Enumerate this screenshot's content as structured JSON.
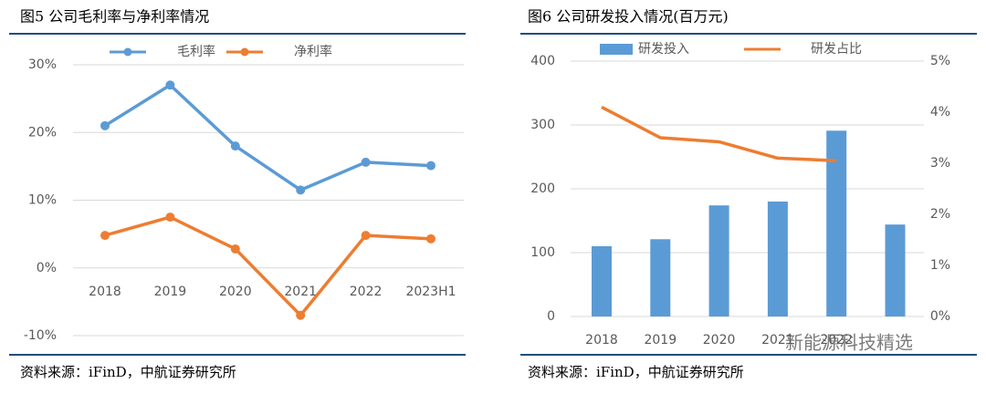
{
  "chart_data": [
    {
      "type": "line",
      "title": "图5 公司毛利率与净利率情况",
      "source": "资料来源：iFinD，中航证券研究所",
      "categories": [
        "2018",
        "2019",
        "2020",
        "2021",
        "2022",
        "2023H1"
      ],
      "series": [
        {
          "name": "毛利率",
          "color": "#5b9bd5",
          "values": [
            21,
            27,
            18,
            11.5,
            15.6,
            15.1
          ]
        },
        {
          "name": "净利率",
          "color": "#ed7d31",
          "values": [
            4.8,
            7.5,
            2.8,
            -7,
            4.8,
            4.3
          ]
        }
      ],
      "markers": true,
      "ylim": [
        -10,
        30
      ],
      "yticks": [
        {
          "value": -10,
          "label": "-10%"
        },
        {
          "value": 0,
          "label": "0%"
        },
        {
          "value": 10,
          "label": "10%"
        },
        {
          "value": 20,
          "label": "20%"
        },
        {
          "value": 30,
          "label": "30%"
        }
      ],
      "grid": true
    },
    {
      "type": "bar",
      "title": "图6 公司研发投入情况(百万元)",
      "source": "资料来源：iFinD，中航证券研究所",
      "categories": [
        "2018",
        "2019",
        "2020",
        "2021",
        "2022",
        null
      ],
      "series": [
        {
          "name": "研发投入",
          "type": "bar",
          "color": "#5b9bd5",
          "values": [
            110,
            121,
            174,
            180,
            291,
            144
          ]
        },
        {
          "name": "研发占比",
          "type": "line",
          "axis": "y2",
          "color": "#ed7d31",
          "values": [
            4.1,
            3.5,
            3.42,
            3.1,
            3.05,
            null
          ]
        }
      ],
      "ylim": [
        0,
        400
      ],
      "yticks": [
        0,
        100,
        200,
        300,
        400
      ],
      "y2lim": [
        0,
        5
      ],
      "y2ticks": [
        {
          "value": 0,
          "label": "0%"
        },
        {
          "value": 1,
          "label": "1%"
        },
        {
          "value": 2,
          "label": "2%"
        },
        {
          "value": 3,
          "label": "3%"
        },
        {
          "value": 4,
          "label": "4%"
        },
        {
          "value": 5,
          "label": "5%"
        }
      ],
      "grid": true
    }
  ],
  "watermark": "新能源科技精选"
}
